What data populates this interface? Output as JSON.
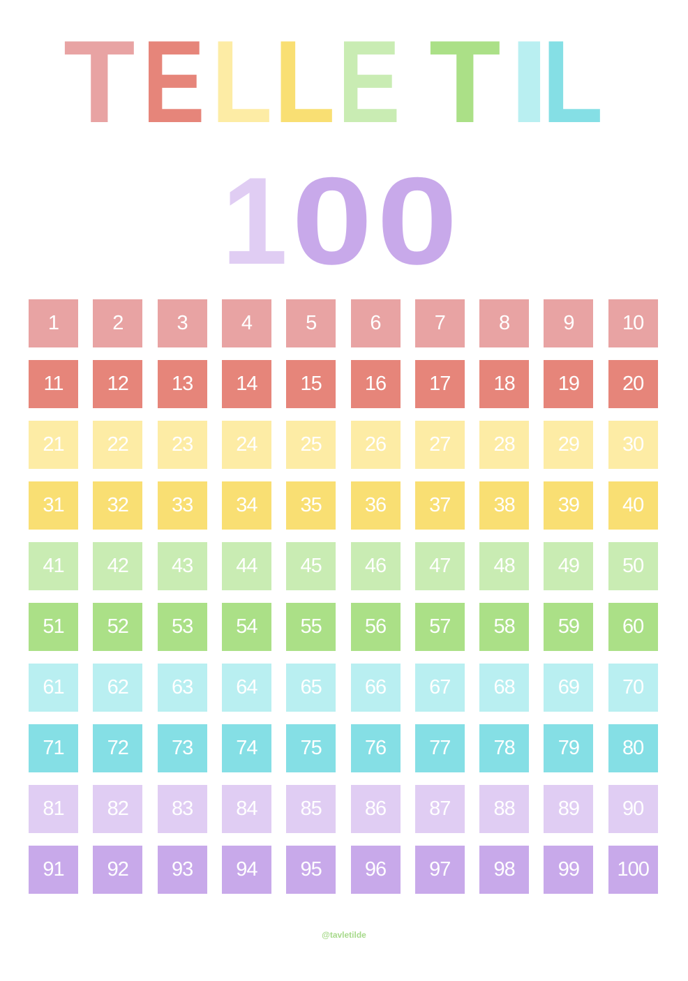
{
  "title": {
    "letters": [
      {
        "char": "T",
        "color": "#e8a3a3"
      },
      {
        "char": "E",
        "color": "#e6857a"
      },
      {
        "char": "L",
        "color": "#fdeca5"
      },
      {
        "char": "L",
        "color": "#f9df73"
      },
      {
        "char": "E",
        "color": "#c9ecb3"
      },
      {
        "char": "T",
        "color": "#abe087"
      },
      {
        "char": "I",
        "color": "#b9eff1"
      },
      {
        "char": "L",
        "color": "#85dfe5"
      }
    ],
    "number": [
      {
        "char": "1",
        "color": "#e0cdf3"
      },
      {
        "char": "0",
        "color": "#c8a9ea"
      },
      {
        "char": "0",
        "color": "#c8a9ea"
      }
    ]
  },
  "grid": {
    "row_colors": [
      "#e8a3a3",
      "#e6857a",
      "#fdeca5",
      "#f9df73",
      "#c9ecb3",
      "#abe087",
      "#b9eff1",
      "#85dfe5",
      "#e0cdf3",
      "#c8a9ea"
    ],
    "start": 1,
    "end": 100,
    "columns": 10
  },
  "footer": {
    "credit": "@tavletilde"
  }
}
